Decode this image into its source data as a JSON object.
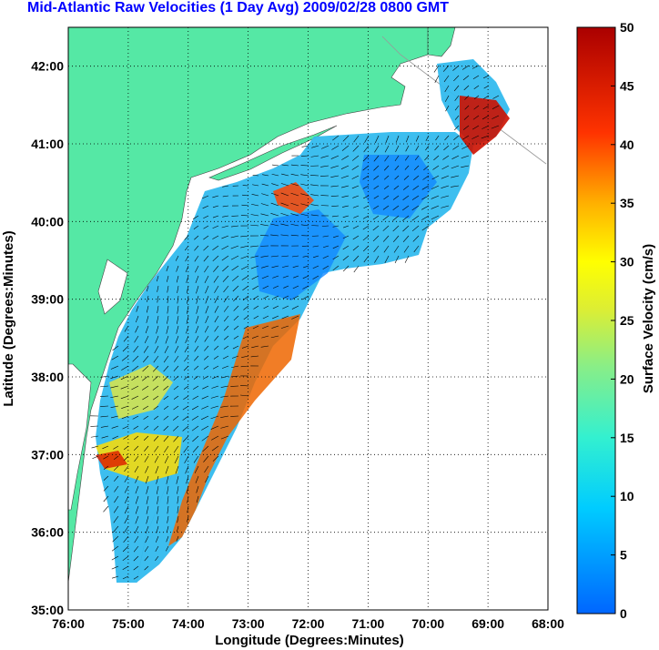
{
  "title": "Mid-Atlantic Raw Velocities (1 Day Avg) 2009/02/28 0800 GMT",
  "map": {
    "xlabel": "Longitude (Degrees:Minutes)",
    "ylabel": "Latitude (Degrees:Minutes)",
    "x_ticks": [
      "76:00",
      "75:00",
      "74:00",
      "73:00",
      "72:00",
      "71:00",
      "70:00",
      "69:00",
      "68:00"
    ],
    "y_ticks": [
      "35:00",
      "36:00",
      "37:00",
      "38:00",
      "39:00",
      "40:00",
      "41:00",
      "42:00"
    ],
    "lon_range": [
      -76,
      -68
    ],
    "lat_range": [
      35,
      42.5
    ],
    "land_color": "#55e8a5",
    "ocean_color": "#ffffff",
    "grid": "dotted"
  },
  "colorbar": {
    "label": "Surface Velocity (cm/s)",
    "ticks": [
      "0",
      "5",
      "10",
      "15",
      "20",
      "25",
      "30",
      "35",
      "40",
      "45",
      "50"
    ],
    "range": [
      0,
      50
    ],
    "colormap": "jet"
  }
}
